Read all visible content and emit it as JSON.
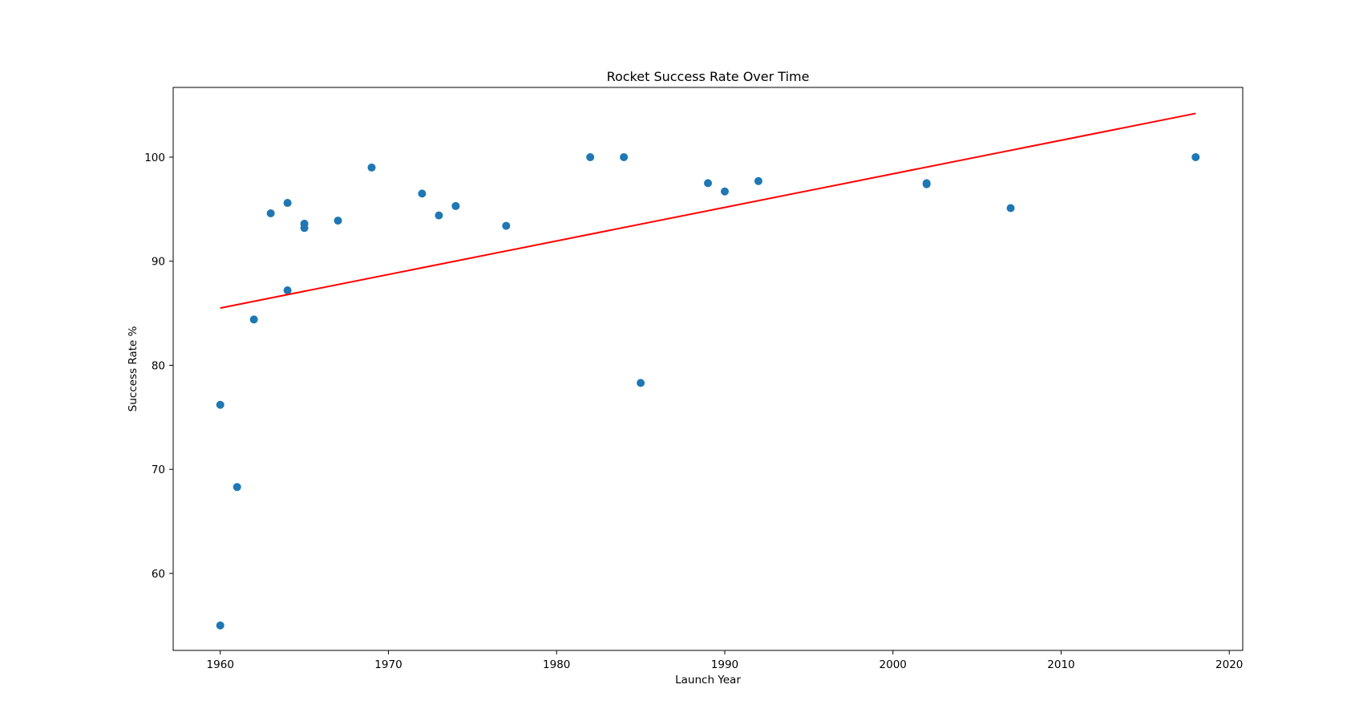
{
  "chart_data": {
    "type": "scatter",
    "title": "Rocket Success Rate Over Time",
    "xlabel": "Launch Year",
    "ylabel": "Success Rate %",
    "xlim": [
      1957.2,
      2020.8
    ],
    "ylim": [
      52.6,
      106.7
    ],
    "xticks": [
      1960,
      1970,
      1980,
      1990,
      2000,
      2010,
      2020
    ],
    "yticks": [
      60,
      70,
      80,
      90,
      100
    ],
    "grid": false,
    "colors": {
      "points": "#1f77b4",
      "trend": "#ff0000",
      "frame": "#000000"
    },
    "series": [
      {
        "type": "scatter",
        "points": [
          [
            1960,
            76.2
          ],
          [
            1960,
            55.0
          ],
          [
            1961,
            68.3
          ],
          [
            1962,
            84.4
          ],
          [
            1963,
            94.6
          ],
          [
            1964,
            95.6
          ],
          [
            1964,
            87.2
          ],
          [
            1965,
            93.6
          ],
          [
            1965,
            93.2
          ],
          [
            1967,
            93.9
          ],
          [
            1969,
            99.0
          ],
          [
            1972,
            96.5
          ],
          [
            1973,
            94.4
          ],
          [
            1974,
            95.3
          ],
          [
            1977,
            93.4
          ],
          [
            1982,
            100.0
          ],
          [
            1984,
            100.0
          ],
          [
            1985,
            78.3
          ],
          [
            1989,
            97.5
          ],
          [
            1990,
            96.7
          ],
          [
            1992,
            97.7
          ],
          [
            2002,
            97.4
          ],
          [
            2002,
            97.5
          ],
          [
            2007,
            95.1
          ],
          [
            2018,
            100.0
          ]
        ]
      },
      {
        "type": "line",
        "points": [
          [
            1960,
            85.5
          ],
          [
            2018,
            104.2
          ]
        ]
      }
    ]
  }
}
